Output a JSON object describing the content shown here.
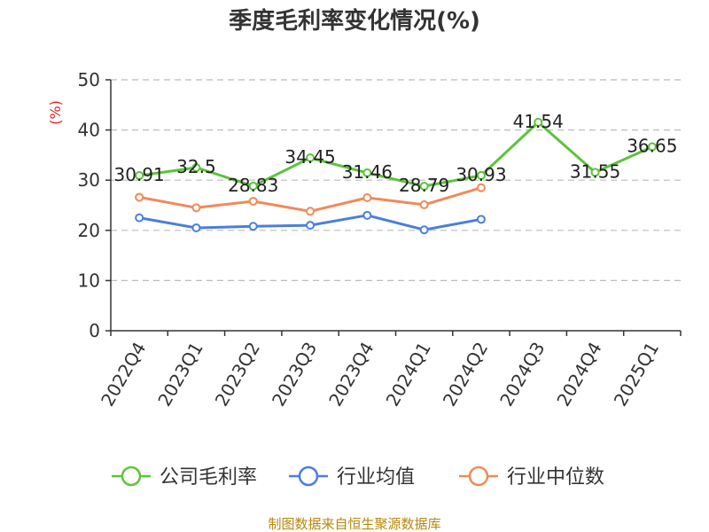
{
  "chart_data": {
    "type": "line",
    "title": "季度毛利率变化情况(%)",
    "ylabel": "(%)",
    "categories": [
      "2022Q4",
      "2023Q1",
      "2023Q2",
      "2023Q3",
      "2023Q4",
      "2024Q1",
      "2024Q2",
      "2024Q3",
      "2024Q4",
      "2025Q1"
    ],
    "ylim": [
      0,
      50
    ],
    "yticks": [
      0,
      10,
      20,
      30,
      40,
      50
    ],
    "grid": true,
    "legend_position": "bottom",
    "series": [
      {
        "name": "公司毛利率",
        "color": "#5cc43a",
        "values": [
          30.91,
          32.5,
          28.83,
          34.45,
          31.46,
          28.79,
          30.93,
          41.54,
          31.55,
          36.65
        ],
        "labels": [
          "30.91",
          "32.5",
          "28.83",
          "34.45",
          "31.46",
          "28.79",
          "30.93",
          "41.54",
          "31.55",
          "36.65"
        ]
      },
      {
        "name": "行业均值",
        "color": "#4a7fdc",
        "values": [
          22.5,
          20.5,
          20.8,
          21.0,
          23.0,
          20.1,
          22.2,
          null,
          null,
          null
        ]
      },
      {
        "name": "行业中位数",
        "color": "#f08a5a",
        "values": [
          26.6,
          24.5,
          25.8,
          23.8,
          26.5,
          25.1,
          28.5,
          null,
          null,
          null
        ]
      }
    ],
    "source": "制图数据来自恒生聚源数据库"
  }
}
